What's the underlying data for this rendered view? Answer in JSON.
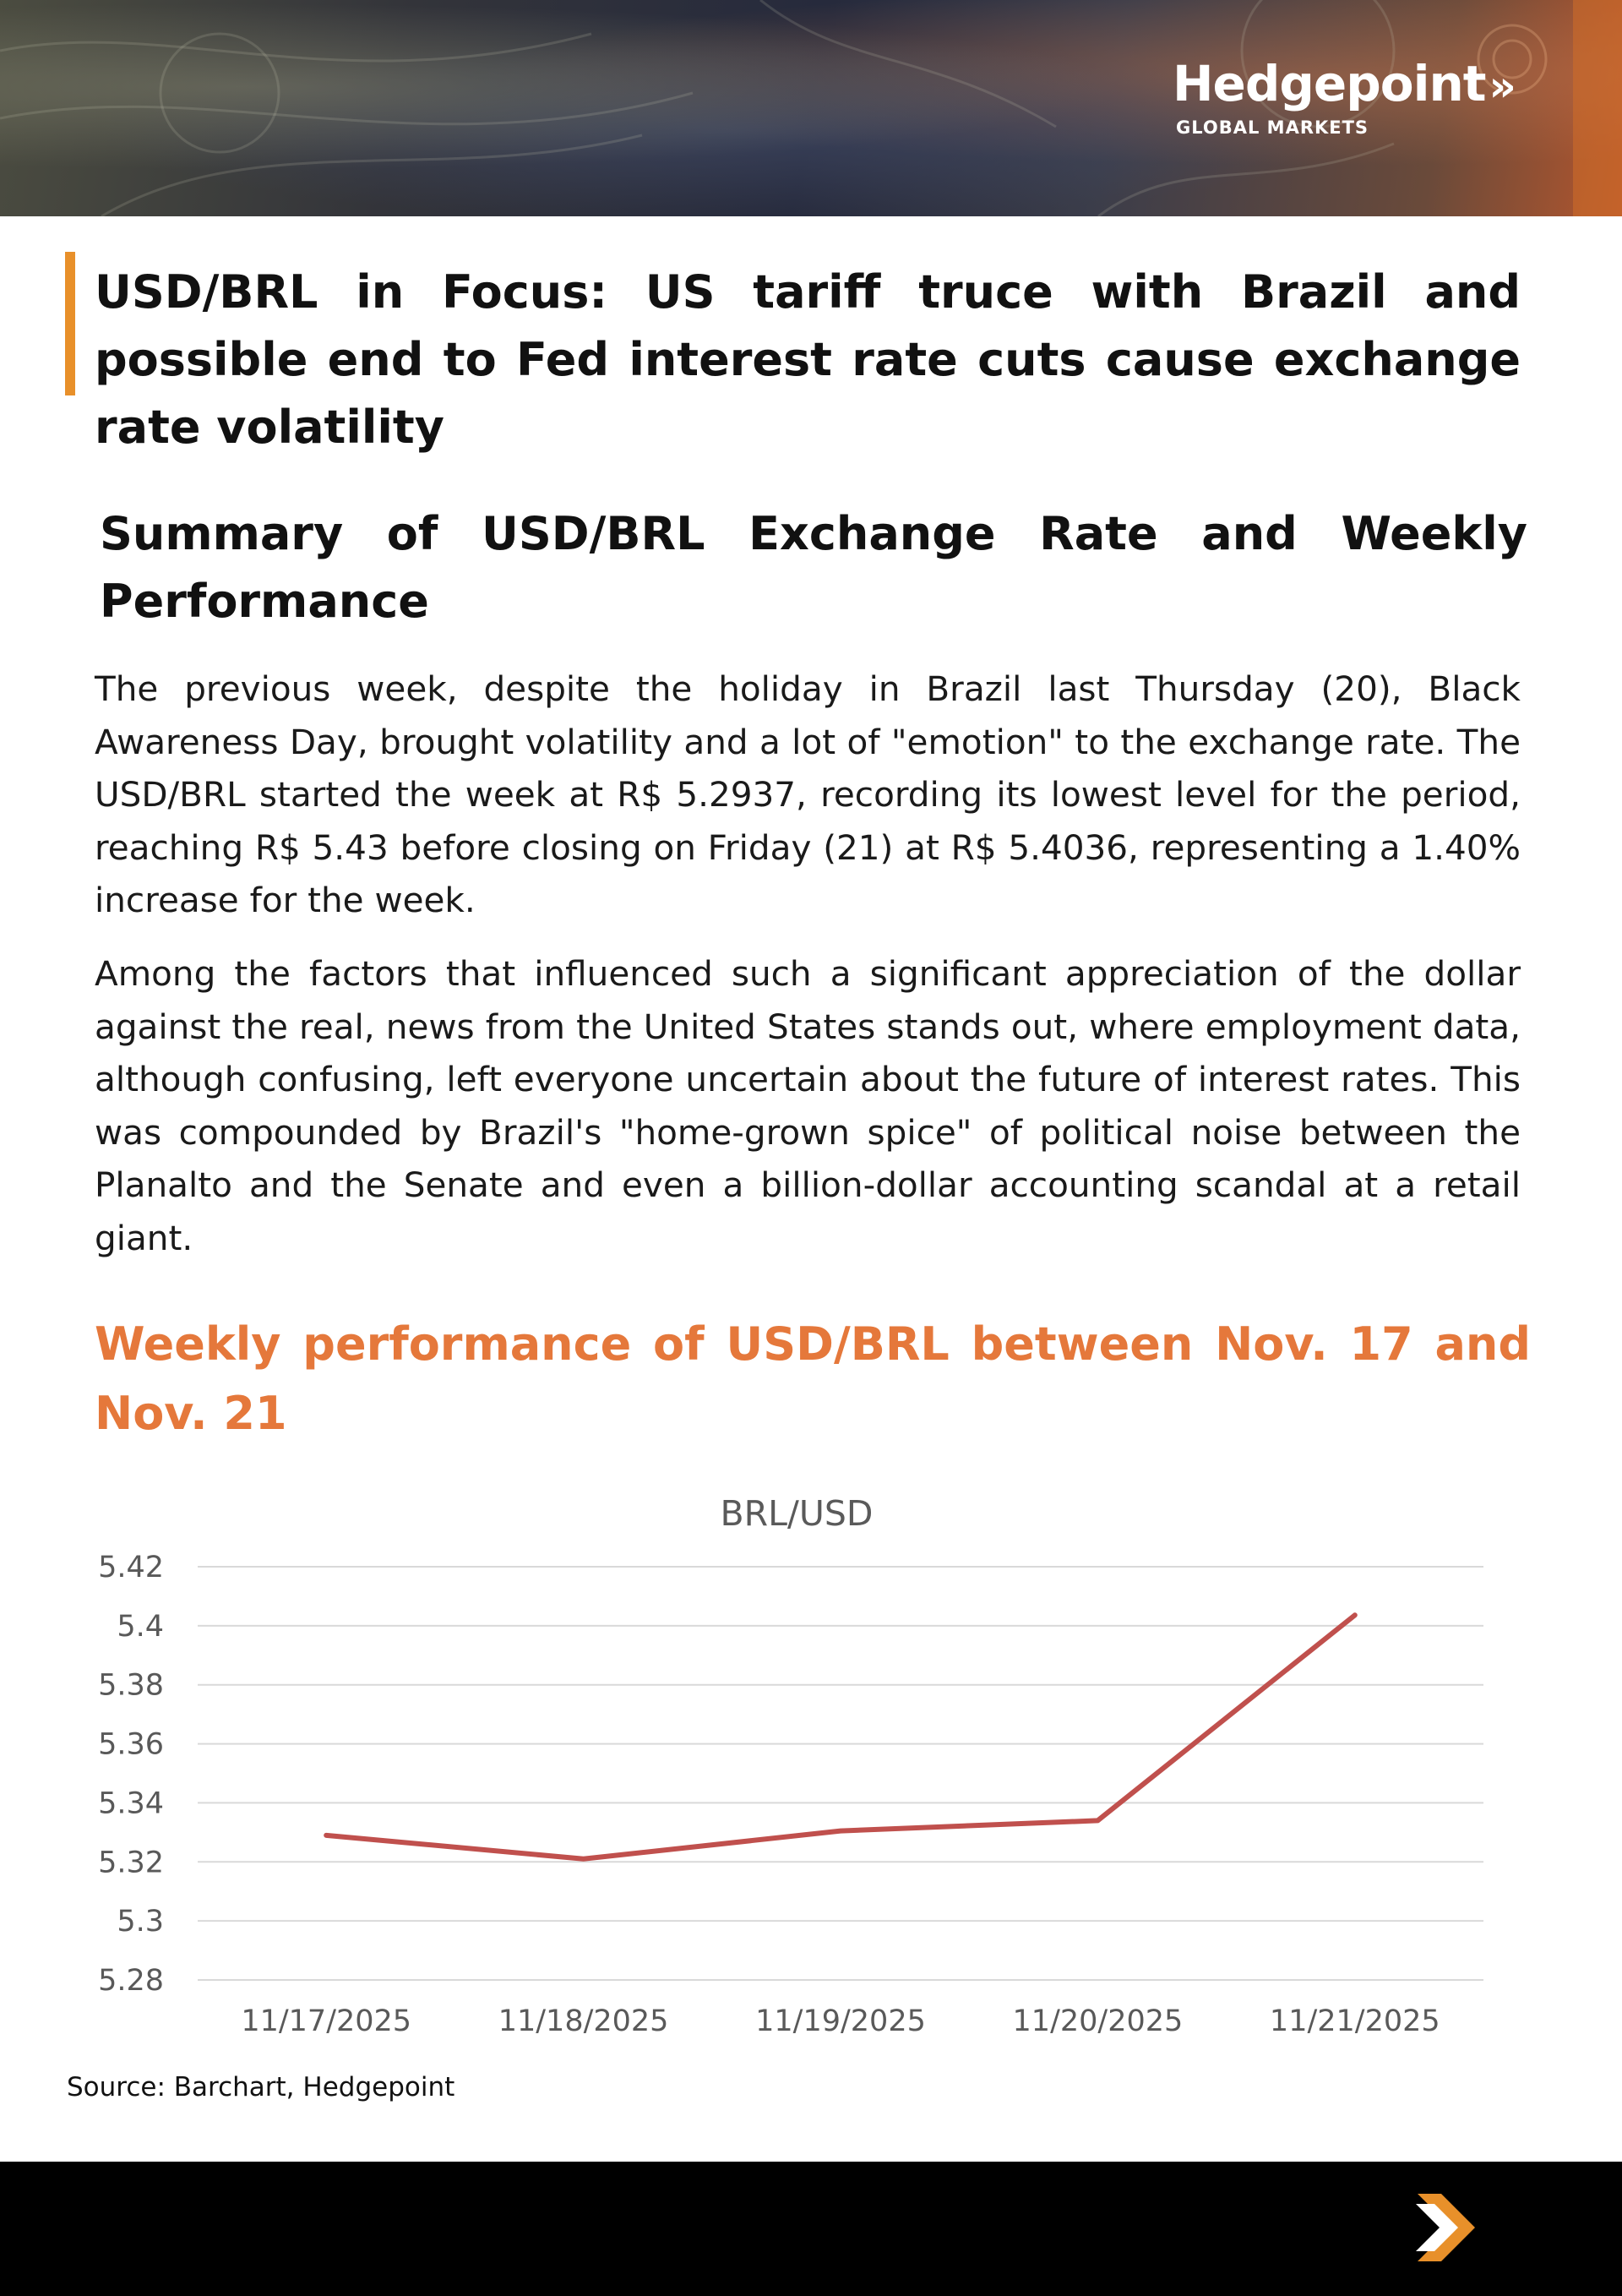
{
  "brand": {
    "name": "Hedgepoint",
    "chevron": "»",
    "tagline": "GLOBAL MARKETS"
  },
  "article": {
    "title": "USD/BRL in Focus:  US tariff truce with Brazil and possible end to Fed interest rate cuts cause exchange rate volatility",
    "section_title": "Summary of USD/BRL Exchange Rate and Weekly Performance",
    "paragraphs": [
      "The previous week, despite the holiday in Brazil last Thursday (20), Black Awareness Day, brought volatility and a lot of \"emotion\" to the exchange rate. The USD/BRL started the week at R$ 5.2937, recording its lowest level for the period, reaching R$ 5.43 before closing on Friday (21) at R$ 5.4036, representing a 1.40% increase for the week.",
      "Among the factors that influenced such a significant appreciation of the dollar against the real, news from the United States stands out, where employment data, although confusing, left everyone uncertain about the future of interest rates. This was compounded by Brazil's \"home-grown spice\" of political noise between the Planalto and the Senate and even a billion-dollar accounting scandal at a retail giant."
    ],
    "chart_heading": "Weekly performance of USD/BRL between Nov. 17 and Nov. 21",
    "source": "Source: Barchart, Hedgepoint"
  },
  "colors": {
    "accent_orange": "#e8902a",
    "heading_orange": "#e5783b",
    "line_red": "#c0504d",
    "footer_black": "#000000"
  },
  "chart_data": {
    "type": "line",
    "title": "BRL/USD",
    "xlabel": "",
    "ylabel": "",
    "categories": [
      "11/17/2025",
      "11/18/2025",
      "11/19/2025",
      "11/20/2025",
      "11/21/2025"
    ],
    "series": [
      {
        "values": [
          5.329,
          5.321,
          5.3305,
          5.334,
          5.4036
        ]
      }
    ],
    "ylim": [
      5.28,
      5.42
    ],
    "yticks": [
      "5.42",
      "5.4",
      "5.38",
      "5.36",
      "5.34",
      "5.32",
      "5.3",
      "5.28"
    ],
    "grid": true,
    "legend": "none"
  }
}
